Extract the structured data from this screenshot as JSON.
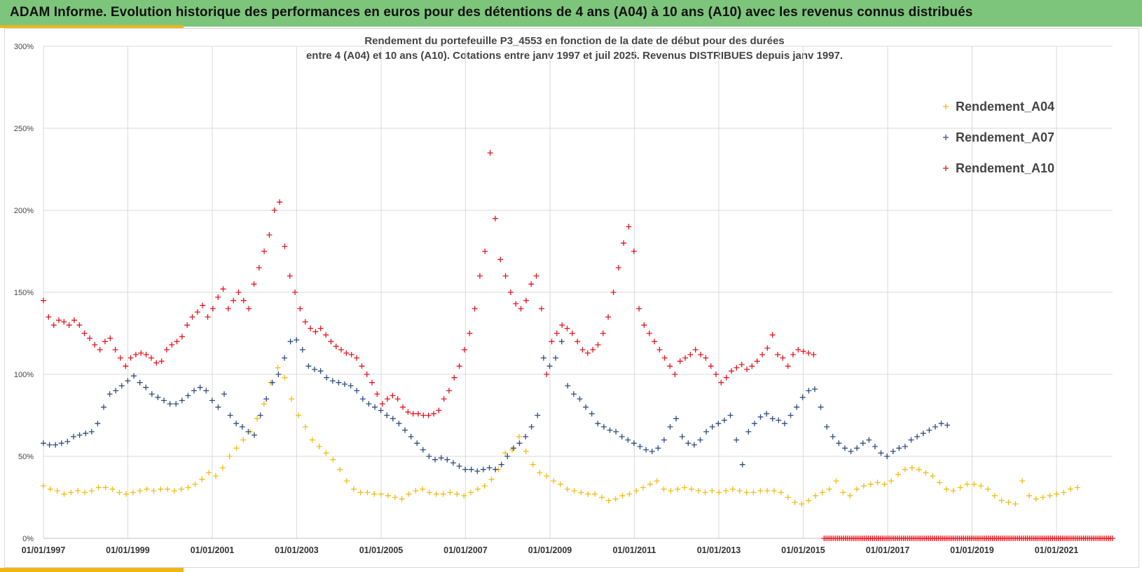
{
  "header": {
    "title": "ADAM Informe. Evolution historique des performances en euros pour des détentions de 4 ans (A04) à 10 ans (A10) avec les revenus connus distribués"
  },
  "colors": {
    "banner": "#7dc57a",
    "accent": "#f1b51a",
    "A04": "#f5bb12",
    "A07": "#2f4c7e",
    "A10": "#e8141e"
  },
  "chart_data": {
    "type": "scatter",
    "title_lines": [
      "Rendement du portefeuille P3_4553 en fonction de la date de début pour des durées",
      "entre 4 (A04) et 10 ans (A10). Cotations entre janv 1997 et juil 2025. Revenus DISTRIBUES depuis janv 1997."
    ],
    "xlabel": "",
    "ylabel": "",
    "xlim": [
      "1997-01-01",
      "2022-05-01"
    ],
    "ylim": [
      0,
      300
    ],
    "yticks": [
      0,
      50,
      100,
      150,
      200,
      250,
      300
    ],
    "ytick_labels": [
      "0%",
      "50%",
      "100%",
      "150%",
      "200%",
      "250%",
      "300%"
    ],
    "xticks": [
      "1997-01-01",
      "1999-01-01",
      "2001-01-01",
      "2003-01-01",
      "2005-01-01",
      "2007-01-01",
      "2009-01-01",
      "2011-01-01",
      "2013-01-01",
      "2015-01-01",
      "2017-01-01",
      "2019-01-01",
      "2021-01-01"
    ],
    "xtick_labels": [
      "01/01/1997",
      "01/01/1999",
      "01/01/2001",
      "01/01/2003",
      "01/01/2005",
      "01/01/2007",
      "01/01/2009",
      "01/01/2011",
      "01/01/2013",
      "01/01/2015",
      "01/01/2017",
      "01/01/2019",
      "01/01/2021"
    ],
    "grid": true,
    "legend_position": "top-right",
    "marker": "+",
    "series": [
      {
        "name": "Rendement_A04",
        "color": "#f5bb12",
        "x_start": "1997-01-01",
        "x_end": "2021-07-01",
        "values": [
          32,
          30,
          29,
          27,
          28,
          29,
          28,
          29,
          31,
          31,
          30,
          28,
          27,
          28,
          29,
          30,
          29,
          30,
          30,
          29,
          30,
          31,
          33,
          36,
          40,
          38,
          43,
          50,
          55,
          60,
          65,
          73,
          82,
          95,
          104,
          98,
          85,
          75,
          68,
          60,
          56,
          52,
          48,
          42,
          35,
          30,
          28,
          28,
          27,
          27,
          26,
          25,
          24,
          27,
          29,
          30,
          28,
          27,
          27,
          28,
          27,
          26,
          28,
          30,
          32,
          36,
          42,
          52,
          54,
          62,
          53,
          45,
          40,
          38,
          35,
          33,
          30,
          29,
          28,
          27,
          27,
          25,
          23,
          24,
          26,
          27,
          29,
          31,
          33,
          35,
          30,
          29,
          30,
          31,
          30,
          29,
          28,
          29,
          28,
          29,
          30,
          29,
          28,
          28,
          29,
          29,
          29,
          28,
          25,
          22,
          21,
          23,
          26,
          28,
          30,
          35,
          28,
          26,
          30,
          32,
          33,
          34,
          33,
          35,
          39,
          42,
          43,
          42,
          40,
          38,
          34,
          30,
          29,
          31,
          33,
          33,
          32,
          30,
          26,
          23,
          22,
          21,
          35,
          26,
          24,
          25,
          26,
          27,
          28,
          30,
          31
        ]
      },
      {
        "name": "Rendement_A07",
        "color": "#2f4c7e",
        "x_start": "1997-01-01",
        "x_end": "2018-06-01",
        "values": [
          58,
          57,
          57,
          58,
          59,
          62,
          63,
          64,
          65,
          70,
          80,
          88,
          90,
          93,
          96,
          99,
          95,
          92,
          88,
          86,
          84,
          82,
          82,
          84,
          87,
          90,
          92,
          90,
          84,
          80,
          88,
          75,
          70,
          68,
          65,
          63,
          75,
          85,
          95,
          100,
          110,
          120,
          121,
          115,
          105,
          103,
          102,
          98,
          96,
          95,
          94,
          93,
          90,
          85,
          82,
          80,
          78,
          75,
          73,
          70,
          66,
          62,
          58,
          54,
          50,
          48,
          49,
          48,
          46,
          44,
          42,
          42,
          41,
          42,
          43,
          42,
          45,
          50,
          55,
          58,
          62,
          68,
          75,
          110,
          105,
          110,
          120,
          93,
          88,
          85,
          80,
          76,
          70,
          68,
          66,
          65,
          62,
          60,
          58,
          56,
          54,
          53,
          55,
          60,
          68,
          73,
          62,
          58,
          57,
          60,
          65,
          68,
          70,
          72,
          75,
          60,
          45,
          65,
          70,
          74,
          76,
          73,
          72,
          70,
          75,
          80,
          86,
          90,
          91,
          80,
          68,
          62,
          58,
          55,
          53,
          55,
          58,
          60,
          56,
          52,
          50,
          53,
          55,
          56,
          60,
          62,
          64,
          66,
          68,
          70,
          69
        ]
      },
      {
        "name": "Rendement_A10",
        "color": "#e8141e",
        "x_start": "1997-01-01",
        "x_end": "2015-04-01",
        "values": [
          145,
          135,
          130,
          133,
          132,
          130,
          133,
          130,
          125,
          122,
          118,
          115,
          120,
          122,
          115,
          110,
          105,
          110,
          112,
          113,
          112,
          110,
          107,
          108,
          115,
          118,
          120,
          123,
          130,
          135,
          138,
          142,
          135,
          140,
          147,
          152,
          140,
          145,
          150,
          145,
          140,
          155,
          165,
          175,
          185,
          200,
          205,
          178,
          160,
          150,
          140,
          132,
          128,
          126,
          128,
          124,
          120,
          117,
          115,
          113,
          112,
          110,
          105,
          100,
          95,
          88,
          82,
          85,
          87,
          85,
          80,
          77,
          76,
          76,
          75,
          75,
          76,
          78,
          85,
          90,
          98,
          105,
          115,
          125,
          140,
          160,
          175,
          235,
          195,
          170,
          160,
          150,
          143,
          140,
          145,
          155,
          160,
          140,
          100,
          120,
          125,
          130,
          128,
          125,
          120,
          115,
          113,
          115,
          118,
          125,
          135,
          150,
          165,
          180,
          190,
          175,
          140,
          130,
          125,
          120,
          115,
          110,
          105,
          100,
          108,
          110,
          112,
          115,
          112,
          110,
          105,
          100,
          95,
          98,
          102,
          104,
          106,
          103,
          105,
          108,
          112,
          116,
          124,
          112,
          110,
          105,
          112,
          115,
          114,
          113,
          112
        ]
      },
      {
        "name": "",
        "color": "#e8141e",
        "note": "flat at zero from 2015-07 onward",
        "x_start": "2015-07-01",
        "x_end": "2022-05-01",
        "values": [
          0,
          0,
          0,
          0,
          0,
          0,
          0,
          0,
          0,
          0,
          0,
          0,
          0,
          0,
          0,
          0,
          0,
          0,
          0,
          0,
          0,
          0,
          0,
          0,
          0,
          0,
          0,
          0,
          0,
          0,
          0,
          0,
          0,
          0,
          0,
          0,
          0,
          0,
          0,
          0,
          0,
          0,
          0,
          0,
          0,
          0,
          0,
          0,
          0,
          0,
          0,
          0,
          0,
          0,
          0,
          0,
          0,
          0,
          0,
          0,
          0,
          0,
          0,
          0,
          0,
          0,
          0,
          0,
          0,
          0,
          0,
          0,
          0,
          0,
          0,
          0,
          0,
          0,
          0,
          0,
          0,
          0,
          0,
          0,
          0,
          0,
          0,
          0,
          0,
          0,
          0,
          0,
          0,
          0,
          0,
          0,
          0,
          0,
          0,
          0,
          0,
          0,
          0,
          0,
          0,
          0,
          0,
          0,
          0,
          0,
          0,
          0,
          0,
          0,
          0,
          0,
          0,
          0,
          0,
          0,
          0,
          0,
          0,
          0,
          0,
          0,
          0,
          0,
          0,
          0,
          0,
          0,
          0,
          0,
          0,
          0,
          0,
          0,
          0,
          0,
          0,
          0,
          0,
          0,
          0,
          0,
          0,
          0,
          0,
          0
        ]
      }
    ]
  }
}
